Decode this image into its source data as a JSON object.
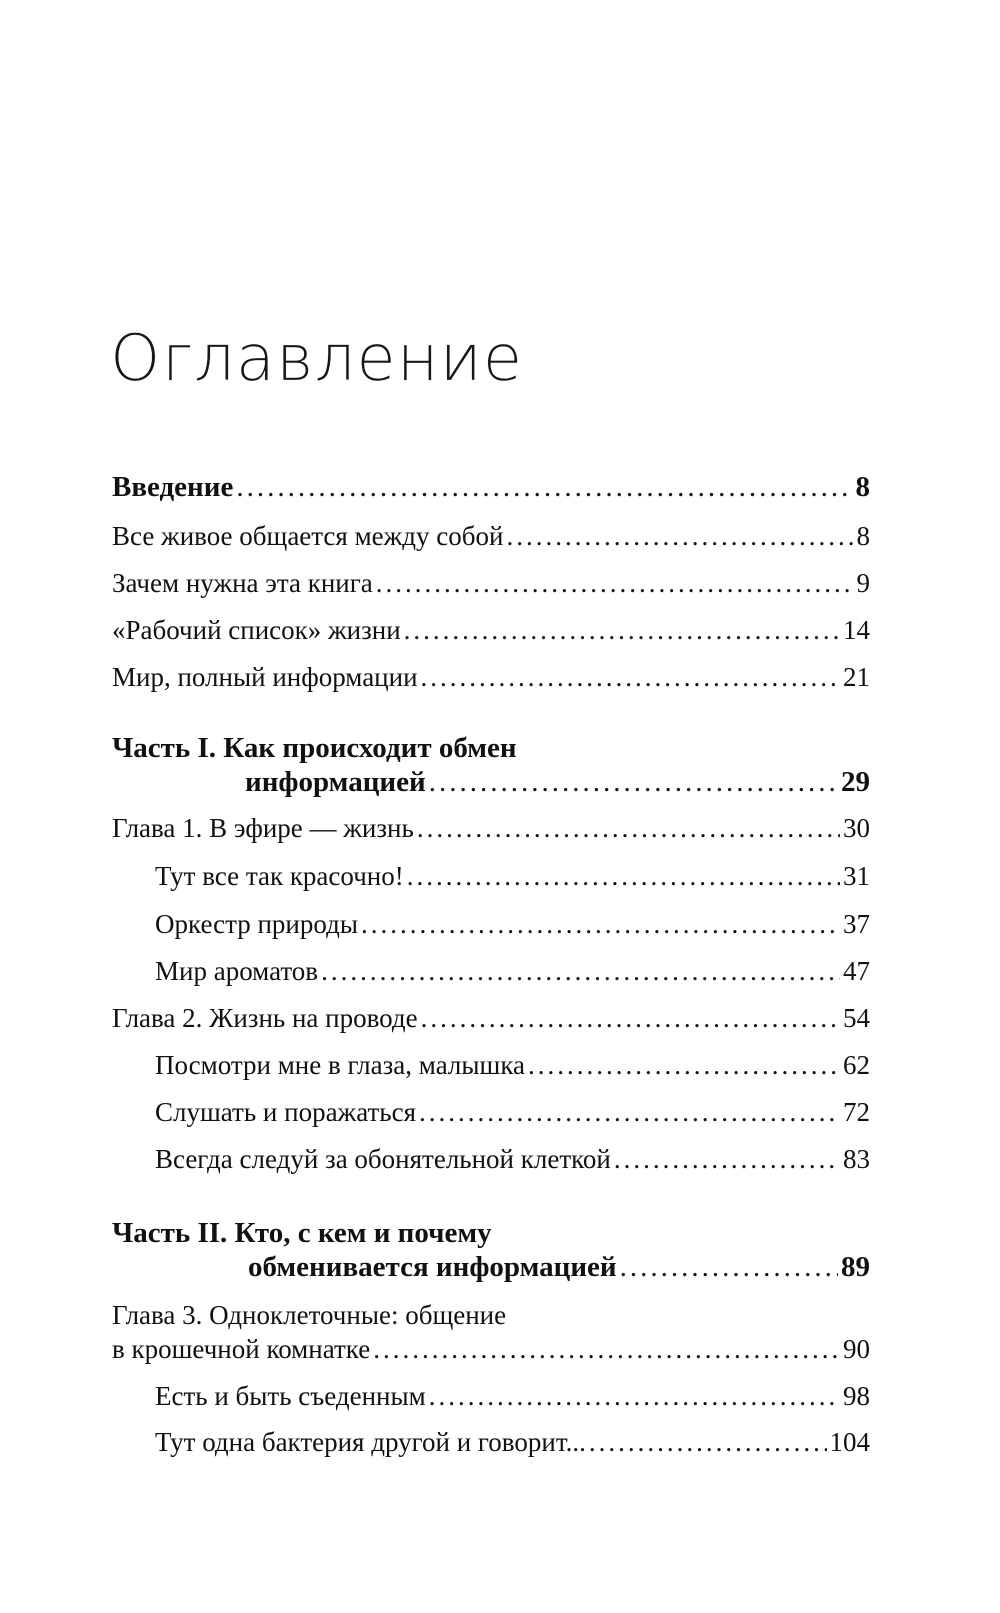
{
  "title": "Оглавление",
  "entries": [
    {
      "lines": [
        "Введение"
      ],
      "page": "8",
      "bold": true,
      "level": 0
    },
    {
      "lines": [
        "Все живое общается между собой"
      ],
      "page": "8",
      "level": 0
    },
    {
      "lines": [
        "Зачем нужна эта книга"
      ],
      "page": "9",
      "level": 0
    },
    {
      "lines": [
        "«Рабочий список» жизни"
      ],
      "page": "14",
      "level": 0
    },
    {
      "lines": [
        "Мир, полный информации"
      ],
      "page": "21",
      "level": 0
    },
    {
      "lines": [
        "Часть I.  Как происходит обмен",
        "информацией"
      ],
      "page": "29",
      "bold": true,
      "level": 0,
      "cont": "cont"
    },
    {
      "lines": [
        "Глава 1. В эфире — жизнь"
      ],
      "page": "30",
      "level": 0
    },
    {
      "lines": [
        "Тут все так красочно!"
      ],
      "page": "31",
      "level": 1
    },
    {
      "lines": [
        "Оркестр природы"
      ],
      "page": "37",
      "level": 1
    },
    {
      "lines": [
        "Мир ароматов"
      ],
      "page": "47",
      "level": 1
    },
    {
      "lines": [
        "Глава 2. Жизнь на проводе"
      ],
      "page": "54",
      "level": 0
    },
    {
      "lines": [
        "Посмотри мне в глаза, малышка"
      ],
      "page": "62",
      "level": 1
    },
    {
      "lines": [
        "Слушать и поражаться"
      ],
      "page": "72",
      "level": 1
    },
    {
      "lines": [
        "Всегда следуй за обонятельной клеткой"
      ],
      "page": "83",
      "level": 1
    },
    {
      "lines": [
        "Часть II. Кто, с кем и почему",
        "обменивается информацией"
      ],
      "page": "89",
      "bold": true,
      "level": 0,
      "cont": "cont2"
    },
    {
      "lines": [
        "Глава 3.  Одноклеточные: общение",
        "в крошечной комнатке"
      ],
      "page": "90",
      "level": 0,
      "cont": ""
    },
    {
      "lines": [
        "Есть и быть съеденным"
      ],
      "page": "98",
      "level": 1
    },
    {
      "lines": [
        "Тут одна бактерия другой и говорит..."
      ],
      "page": "104",
      "level": 1
    }
  ]
}
